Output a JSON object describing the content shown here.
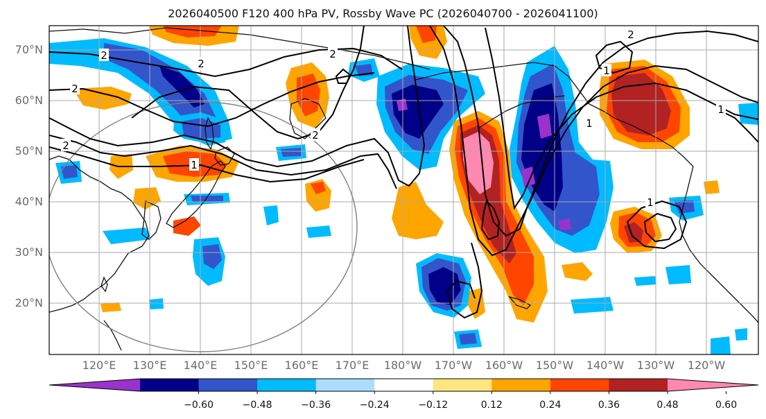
{
  "title": "2026040500 F120 400 hPa PV, Rossby Wave PC (2026040700 - 2026041100)",
  "lat_labels": [
    "70°N",
    "60°N",
    "50°N",
    "40°N",
    "30°N",
    "20°N"
  ],
  "lon_labels": [
    "120°E",
    "130°E",
    "140°E",
    "150°E",
    "160°E",
    "170°E",
    "180°W",
    "170°W",
    "160°W",
    "150°W",
    "140°W",
    "130°W",
    "120°W"
  ],
  "colorbar": {
    "colors": [
      "#9933cc",
      "#000088",
      "#3355cc",
      "#00bbff",
      "#aaddff",
      "#ffffff",
      "#ffe680",
      "#ffa500",
      "#ff4500",
      "#b22222",
      "#ff88b0"
    ],
    "tick_labels": [
      "−0.60",
      "−0.48",
      "−0.36",
      "−0.24",
      "−0.12",
      "0.12",
      "0.24",
      "0.36",
      "0.48",
      "0.60"
    ]
  },
  "contour_labels": [
    "2",
    "2",
    "2",
    "2",
    "2",
    "2",
    "2",
    "1",
    "1",
    "1",
    "1",
    "1"
  ],
  "colors": {
    "land": "#111111",
    "grid": "#aaaaaa",
    "contour": "#000000",
    "circle": "#808080"
  }
}
